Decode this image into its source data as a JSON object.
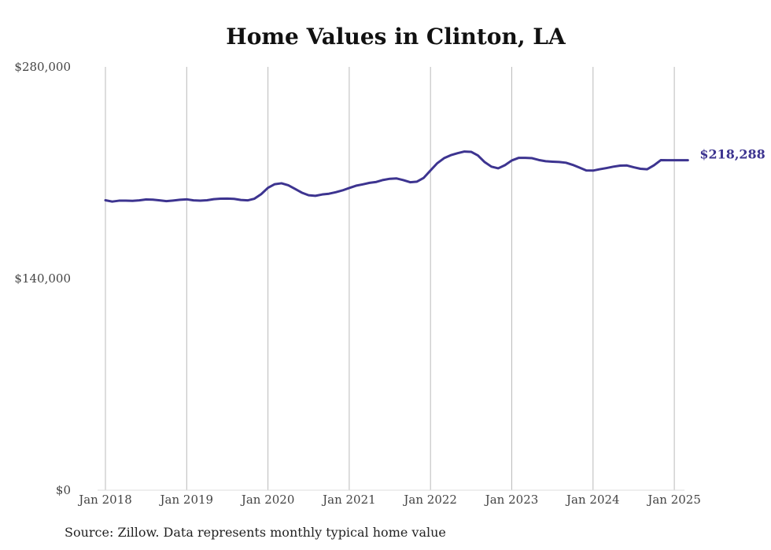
{
  "chart_data": {
    "type": "line",
    "title": "Home Values in Clinton, LA",
    "xlabel": "",
    "ylabel": "",
    "x_ticks": [
      "Jan 2018",
      "Jan 2019",
      "Jan 2020",
      "Jan 2021",
      "Jan 2022",
      "Jan 2023",
      "Jan 2024",
      "Jan 2025"
    ],
    "y_ticks": [
      "$0",
      "$140,000",
      "$280,000"
    ],
    "ylim": [
      0,
      280000
    ],
    "xlim": [
      "2018-01",
      "2025-03"
    ],
    "grid": "vertical lines at January of each year",
    "line_color": "#3d3490",
    "end_label": "$218,288",
    "series": [
      {
        "x": [
          "2018-01",
          "2018-02",
          "2018-03",
          "2018-04",
          "2018-05",
          "2018-06",
          "2018-07",
          "2018-08",
          "2018-09",
          "2018-10",
          "2018-11",
          "2018-12",
          "2019-01",
          "2019-02",
          "2019-03",
          "2019-04",
          "2019-05",
          "2019-06",
          "2019-07",
          "2019-08",
          "2019-09",
          "2019-10",
          "2019-11",
          "2019-12",
          "2020-01",
          "2020-02",
          "2020-03",
          "2020-04",
          "2020-05",
          "2020-06",
          "2020-07",
          "2020-08",
          "2020-09",
          "2020-10",
          "2020-11",
          "2020-12",
          "2021-01",
          "2021-02",
          "2021-03",
          "2021-04",
          "2021-05",
          "2021-06",
          "2021-07",
          "2021-08",
          "2021-09",
          "2021-10",
          "2021-11",
          "2021-12",
          "2022-01",
          "2022-02",
          "2022-03",
          "2022-04",
          "2022-05",
          "2022-06",
          "2022-07",
          "2022-08",
          "2022-09",
          "2022-10",
          "2022-11",
          "2022-12",
          "2023-01",
          "2023-02",
          "2023-03",
          "2023-04",
          "2023-05",
          "2023-06",
          "2023-07",
          "2023-08",
          "2023-09",
          "2023-10",
          "2023-11",
          "2023-12",
          "2024-01",
          "2024-02",
          "2024-03",
          "2024-04",
          "2024-05",
          "2024-06",
          "2024-07",
          "2024-08",
          "2024-09",
          "2024-10",
          "2024-11",
          "2024-12",
          "2025-01",
          "2025-02",
          "2025-03"
        ],
        "values": [
          191800,
          190900,
          191500,
          191500,
          191400,
          191700,
          192300,
          192200,
          191700,
          191200,
          191600,
          192100,
          192400,
          191700,
          191500,
          191800,
          192500,
          192800,
          192900,
          192700,
          192000,
          191700,
          192800,
          195800,
          200000,
          202400,
          203000,
          201700,
          199300,
          196800,
          195100,
          194700,
          195600,
          196100,
          197100,
          198300,
          199900,
          201400,
          202300,
          203300,
          203900,
          205200,
          206000,
          206200,
          205100,
          203700,
          204100,
          206600,
          211500,
          216300,
          219600,
          221600,
          222900,
          224000,
          223800,
          221400,
          217000,
          214000,
          212900,
          215000,
          218100,
          219800,
          219800,
          219600,
          218400,
          217600,
          217300,
          217100,
          216600,
          215200,
          213400,
          211500,
          211400,
          212300,
          213100,
          214000,
          214700,
          214800,
          213600,
          212600,
          212300,
          214900,
          218300,
          218288,
          218288,
          218288,
          218288
        ]
      }
    ]
  },
  "source_note": "Source: Zillow. Data represents monthly typical home value"
}
